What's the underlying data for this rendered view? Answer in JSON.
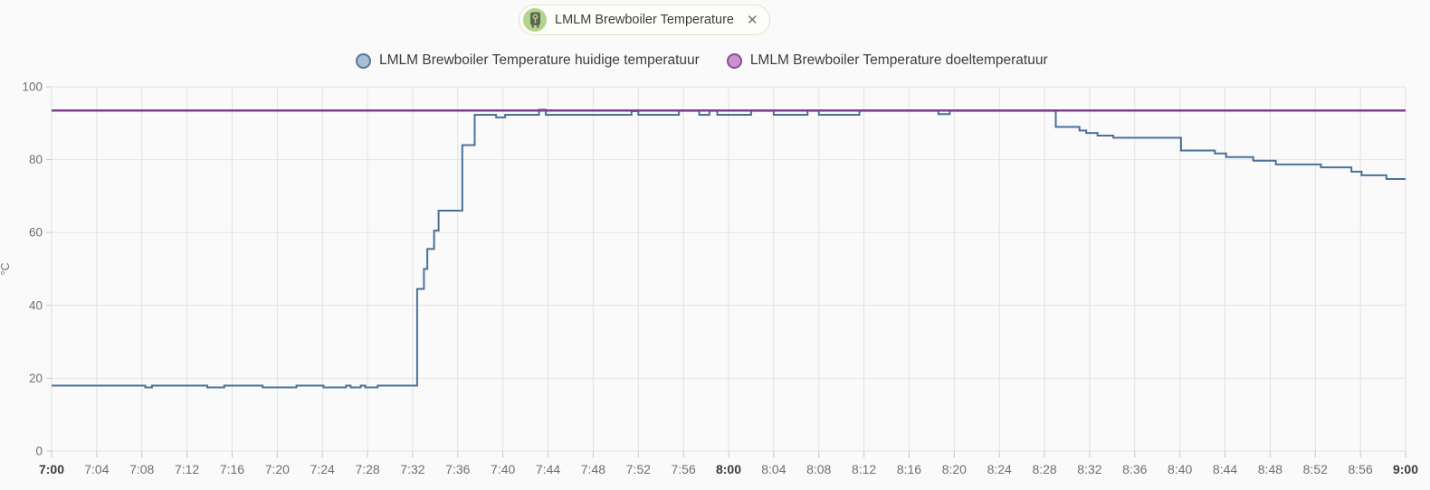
{
  "chip": {
    "label": "LMLM Brewboiler Temperature",
    "icon": "water-boiler-icon",
    "close_glyph": "✕",
    "avatar_bg": "#b3d48c",
    "icon_color": "#5d6456",
    "border_color": "#d9e8c5"
  },
  "legend": {
    "position": "top",
    "items": [
      {
        "label": "LMLM Brewboiler Temperature huidige temperatuur",
        "fill": "#a9bdd3",
        "border": "#54779d"
      },
      {
        "label": "LMLM Brewboiler Temperature doeltemperatuur",
        "fill": "#c795cb",
        "border": "#8d4d97"
      }
    ]
  },
  "chart_data": {
    "type": "line",
    "step": "after",
    "title": "",
    "xlabel": "",
    "ylabel": "°C",
    "grid": true,
    "legend_position": "top",
    "ylim": [
      0,
      100
    ],
    "y_ticks": [
      0,
      20,
      40,
      60,
      80,
      100
    ],
    "x_range_minutes": [
      0,
      120
    ],
    "x_ticks": [
      "7:00",
      "7:04",
      "7:08",
      "7:12",
      "7:16",
      "7:20",
      "7:24",
      "7:28",
      "7:32",
      "7:36",
      "7:40",
      "7:44",
      "7:48",
      "7:52",
      "7:56",
      "8:00",
      "8:04",
      "8:08",
      "8:12",
      "8:16",
      "8:20",
      "8:24",
      "8:28",
      "8:32",
      "8:36",
      "8:40",
      "8:44",
      "8:48",
      "8:52",
      "8:56",
      "9:00"
    ],
    "x_bold_ticks": [
      "7:00",
      "8:00",
      "9:00"
    ],
    "colors": {
      "grid": "#e2e2e2",
      "tick": "#c9c9c9",
      "label": "#6f6f6f",
      "label_bold": "#3b3b3b"
    },
    "series": [
      {
        "name": "LMLM Brewboiler Temperature huidige temperatuur",
        "color": "#4a7298",
        "width": 2,
        "points": [
          [
            0,
            18
          ],
          [
            8.3,
            17.5
          ],
          [
            8.9,
            18
          ],
          [
            13.8,
            17.5
          ],
          [
            15.3,
            18
          ],
          [
            18.7,
            17.5
          ],
          [
            21.7,
            18
          ],
          [
            24.1,
            17.5
          ],
          [
            26.1,
            18
          ],
          [
            26.5,
            17.5
          ],
          [
            27.4,
            18
          ],
          [
            27.8,
            17.5
          ],
          [
            28.9,
            18
          ],
          [
            32.4,
            44.5
          ],
          [
            33,
            50
          ],
          [
            33.3,
            55.5
          ],
          [
            33.9,
            60.5
          ],
          [
            34.3,
            66
          ],
          [
            36.4,
            84
          ],
          [
            37.5,
            92.3
          ],
          [
            39.4,
            91.6
          ],
          [
            40.2,
            92.3
          ],
          [
            43.2,
            93.7
          ],
          [
            43.8,
            92.3
          ],
          [
            51.4,
            93.3
          ],
          [
            52,
            92.3
          ],
          [
            55.6,
            93.4
          ],
          [
            57.4,
            92.3
          ],
          [
            58.3,
            93.4
          ],
          [
            59,
            92.3
          ],
          [
            62,
            93.4
          ],
          [
            64,
            92.3
          ],
          [
            67,
            93.4
          ],
          [
            68,
            92.3
          ],
          [
            71.6,
            93.4
          ],
          [
            78.6,
            92.5
          ],
          [
            79.6,
            93.4
          ],
          [
            89,
            89
          ],
          [
            91.1,
            88
          ],
          [
            91.7,
            87.3
          ],
          [
            92.7,
            86.6
          ],
          [
            94.1,
            86
          ],
          [
            100.1,
            82.5
          ],
          [
            103.1,
            81.7
          ],
          [
            104.1,
            80.7
          ],
          [
            106.5,
            79.7
          ],
          [
            108.5,
            78.7
          ],
          [
            112.5,
            77.9
          ],
          [
            115.2,
            76.7
          ],
          [
            116.1,
            75.7
          ],
          [
            118.3,
            74.7
          ],
          [
            120,
            74.7
          ]
        ]
      },
      {
        "name": "LMLM Brewboiler Temperature doeltemperatuur",
        "color": "#7e3f8f",
        "width": 2.5,
        "points": [
          [
            0,
            93.5
          ],
          [
            120,
            93.5
          ]
        ]
      }
    ]
  }
}
